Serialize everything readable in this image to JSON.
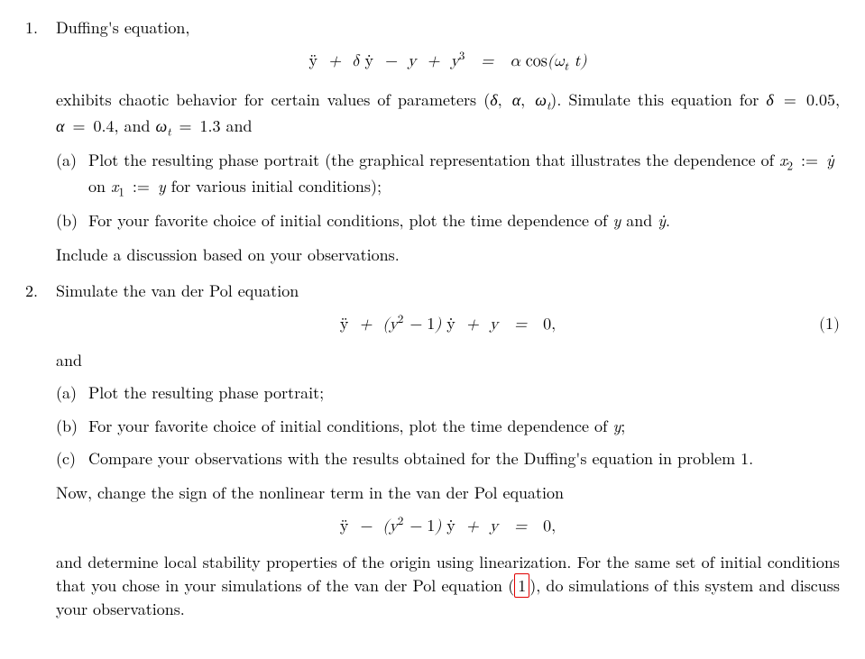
{
  "problems": [
    {
      "number": "1.",
      "intro": "Duffing's equation,",
      "equation": "ÿ  +  δ ẏ  −  y  +  y³   =   α cos(ω_t t)",
      "after_eq": "exhibits chaotic behavior for certain values of parameters (δ, α, ω_t). Simulate this equation for δ = 0.05, α = 0.4, and ω_t = 1.3 and",
      "parts": [
        {
          "label": "(a)",
          "text": "Plot the resulting phase portrait (the graphical representation that illustrates the dependence of x₂ := ẏ on x₁ := y for various initial conditions);"
        },
        {
          "label": "(b)",
          "text": "For your favorite choice of initial conditions, plot the time dependence of y and ẏ."
        }
      ],
      "tail": "Include a discussion based on your observations."
    },
    {
      "number": "2.",
      "intro": "Simulate the van der Pol equation",
      "equation": "ÿ  +  (y² − 1) ẏ  +  y   =   0,",
      "eqnno": "(1)",
      "after_eq": "and",
      "parts": [
        {
          "label": "(a)",
          "text": "Plot the resulting phase portrait;"
        },
        {
          "label": "(b)",
          "text": "For your favorite choice of initial conditions, plot the time dependence of y;"
        },
        {
          "label": "(c)",
          "text": "Compare your observations with the results obtained for the Duffing's equation in problem 1."
        }
      ],
      "mid": "Now, change the sign of the nonlinear term in the van der Pol equation",
      "equation2": "ÿ  −  (y² − 1) ẏ  +  y   =   0,",
      "tail": "and determine local stability properties of the origin using linearization. For the same set of initial conditions that you chose in your simulations of the van der Pol equation (1), do simulations of this system and discuss your observations.",
      "ref": "1"
    }
  ],
  "colors": {
    "text": "#000000",
    "bg": "#ffffff",
    "refbox": "#e00000"
  },
  "fontsize_pt": 12
}
